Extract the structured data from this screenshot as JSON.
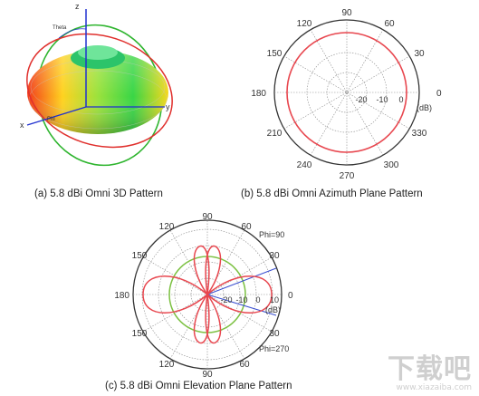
{
  "panel_a": {
    "caption": "(a) 5.8 dBi Omni 3D Pattern",
    "axis_labels": {
      "z": "z",
      "y": "y",
      "x": "x",
      "theta": "Theta",
      "phi": "Phi"
    }
  },
  "panel_b": {
    "caption": "(b) 5.8 dBi Omni Azimuth Plane Pattern",
    "angle_labels": {
      "a0": "0",
      "a30": "30",
      "a60": "60",
      "a90": "90",
      "a120": "120",
      "a150": "150",
      "a180": "180",
      "a210": "210",
      "a240": "240",
      "a270": "270",
      "a300": "300",
      "a330": "330"
    },
    "radial_labels": {
      "r1": "-20",
      "r2": "-10",
      "r3": "0"
    },
    "unit": "(dB)",
    "colors": {
      "pattern": "#e8474f",
      "grid": "#999999"
    }
  },
  "panel_c": {
    "caption": "(c) 5.8 dBi Omni Elevation Plane Pattern",
    "angle_labels": {
      "a0": "0",
      "a30": "30",
      "a60": "60",
      "a90": "90",
      "a120": "120",
      "a150": "150",
      "a180": "180",
      "a150b": "150",
      "a120b": "120",
      "a90b": "90",
      "a60b": "60",
      "a30b": "30"
    },
    "radial_labels": {
      "r1": "-20",
      "r2": "-10",
      "r3": "0",
      "r4": "10"
    },
    "unit": "(dB)",
    "phi_labels": {
      "top": "Phi=90",
      "bottom": "Phi=270"
    },
    "colors": {
      "pattern": "#e8474f",
      "reference": "#7cc142",
      "beam": "#3a4fd0"
    }
  },
  "watermark": {
    "main": "下载吧",
    "sub": "www.xiazaiba.com"
  }
}
